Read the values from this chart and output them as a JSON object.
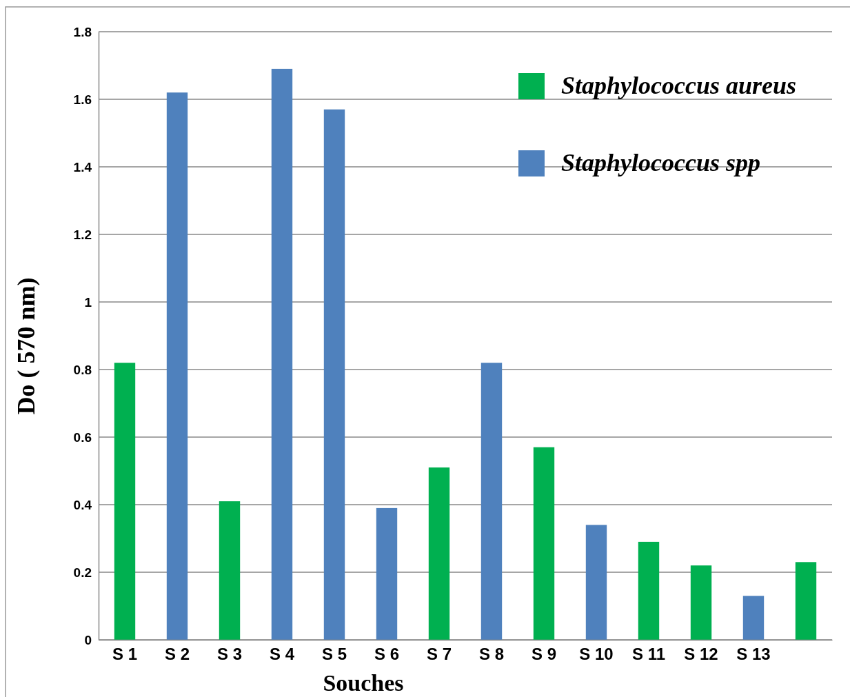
{
  "chart_data": {
    "type": "bar",
    "xlabel": "Souches",
    "ylabel": "Do ( 570 nm)",
    "categories": [
      "S 1",
      "S 2",
      "S 3",
      "S 4",
      "S 5",
      "S 6",
      "S 7",
      "S 8",
      "S 9",
      "S 10",
      "S 11",
      "S 12",
      "S 13",
      null
    ],
    "series": [
      {
        "name": "Staphylococcus aureus",
        "color": "#00b050",
        "values": [
          0.82,
          null,
          0.41,
          null,
          null,
          null,
          0.51,
          null,
          0.57,
          null,
          0.29,
          0.22,
          null,
          0.23
        ]
      },
      {
        "name": "Staphylococcus spp",
        "color": "#4f81bd",
        "values": [
          null,
          1.62,
          null,
          1.69,
          1.57,
          0.39,
          null,
          0.82,
          null,
          0.34,
          null,
          null,
          0.13,
          null
        ]
      }
    ],
    "ylim": [
      0,
      1.8
    ],
    "yticks": [
      0,
      0.2,
      0.4,
      0.6,
      0.8,
      1,
      1.2,
      1.4,
      1.6,
      1.8
    ],
    "grid": "y",
    "legend": "top right"
  }
}
